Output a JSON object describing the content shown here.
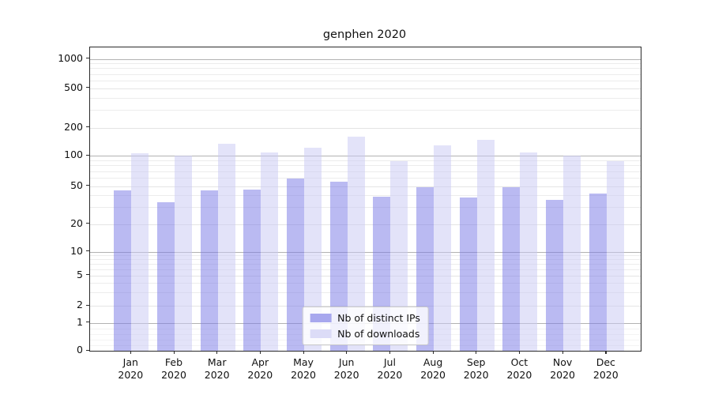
{
  "title": "genphen 2020",
  "chart_data": {
    "type": "bar",
    "title": "genphen 2020",
    "yscale": "symlog",
    "grid": true,
    "xlabel": "",
    "ylabel": "",
    "categories": [
      "Jan 2020",
      "Feb 2020",
      "Mar 2020",
      "Apr 2020",
      "May 2020",
      "Jun 2020",
      "Jul 2020",
      "Aug 2020",
      "Sep 2020",
      "Oct 2020",
      "Nov 2020",
      "Dec 2020"
    ],
    "series": [
      {
        "name": "Nb of distinct IPs",
        "color": "#9f9fec",
        "fill": "rgba(122,122,230,0.72)",
        "values": [
          45,
          34,
          45,
          46,
          59,
          55,
          39,
          49,
          38,
          49,
          36,
          42
        ]
      },
      {
        "name": "Nb of downloads",
        "color": "#d8d8f6",
        "fill": "rgba(201,201,243,0.72)",
        "values": [
          106,
          100,
          133,
          108,
          121,
          160,
          89,
          128,
          149,
          108,
          100,
          89
        ]
      }
    ],
    "yticks": [
      0,
      1,
      2,
      5,
      10,
      20,
      50,
      100,
      200,
      500,
      1000
    ],
    "ylim": [
      0,
      1300
    ],
    "legend": {
      "position": "lower center",
      "items": [
        "Nb of distinct IPs",
        "Nb of downloads"
      ]
    }
  }
}
